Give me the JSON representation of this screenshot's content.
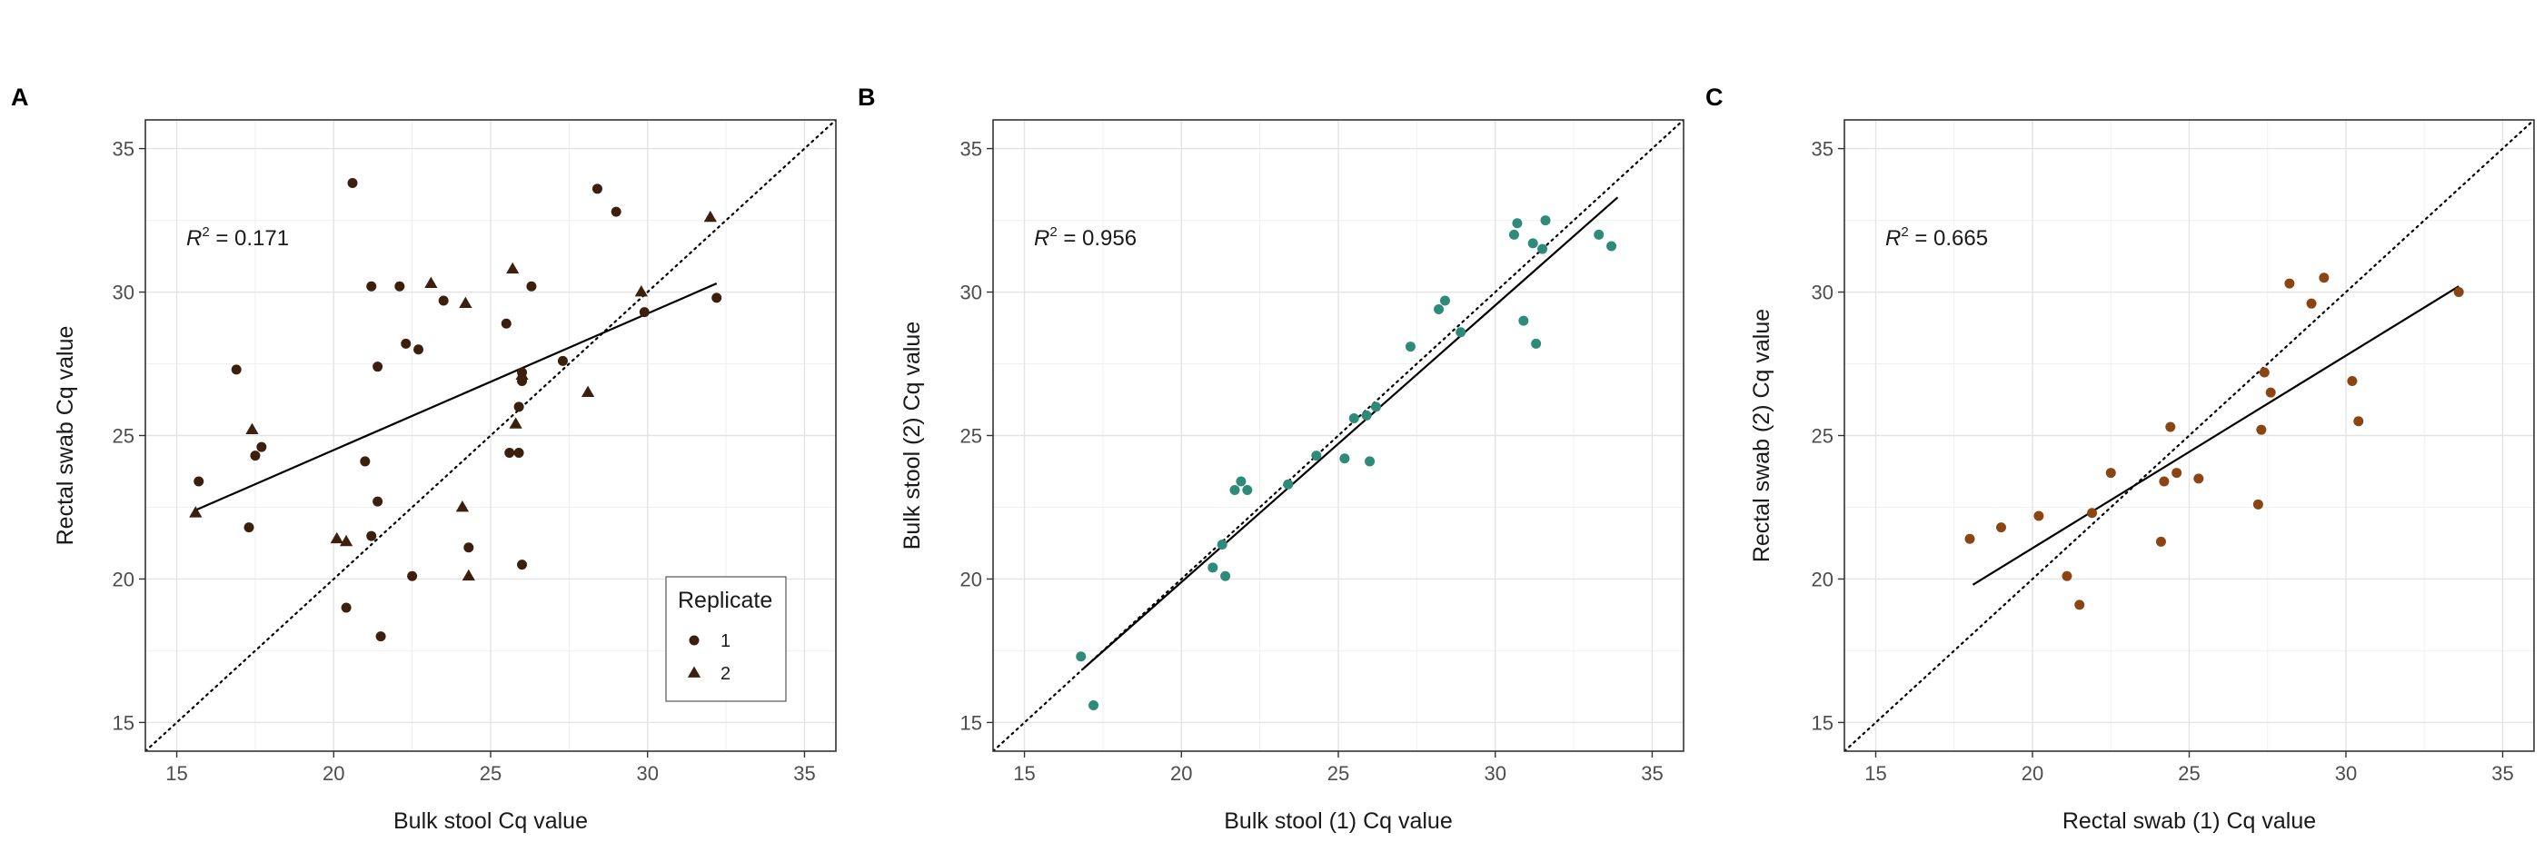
{
  "chart_data": [
    {
      "type": "scatter",
      "panel_label": "A",
      "xlabel": "Bulk stool Cq value",
      "ylabel": "Rectal swab Cq value",
      "xlim": [
        14,
        36
      ],
      "ylim": [
        14,
        36
      ],
      "xticks": [
        15,
        20,
        25,
        30,
        35
      ],
      "yticks": [
        15,
        20,
        25,
        30,
        35
      ],
      "grid": true,
      "r2_label": "= 0.171",
      "color": "#3d1f0d",
      "identity_line": true,
      "fit_line": {
        "x": [
          15.6,
          32.2
        ],
        "y": [
          22.4,
          30.3
        ]
      },
      "legend": {
        "title": "Replicate",
        "position": "bottom-right",
        "entries": [
          {
            "label": "1",
            "shape": "circle"
          },
          {
            "label": "2",
            "shape": "triangle"
          }
        ]
      },
      "series": [
        {
          "name": "1",
          "shape": "circle",
          "points": [
            [
              15.7,
              23.4
            ],
            [
              17.3,
              21.8
            ],
            [
              16.9,
              27.3
            ],
            [
              17.5,
              24.3
            ],
            [
              17.7,
              24.6
            ],
            [
              20.4,
              19.0
            ],
            [
              20.6,
              33.8
            ],
            [
              21.0,
              24.1
            ],
            [
              21.2,
              30.2
            ],
            [
              21.2,
              21.5
            ],
            [
              21.4,
              27.4
            ],
            [
              21.4,
              22.7
            ],
            [
              21.5,
              18.0
            ],
            [
              22.1,
              30.2
            ],
            [
              22.3,
              28.2
            ],
            [
              22.5,
              20.1
            ],
            [
              22.7,
              28.0
            ],
            [
              23.5,
              29.7
            ],
            [
              24.3,
              21.1
            ],
            [
              25.5,
              28.9
            ],
            [
              25.6,
              24.4
            ],
            [
              25.9,
              26.0
            ],
            [
              25.9,
              24.4
            ],
            [
              26.0,
              27.2
            ],
            [
              26.0,
              26.9
            ],
            [
              26.0,
              20.5
            ],
            [
              26.3,
              30.2
            ],
            [
              27.3,
              27.6
            ],
            [
              28.4,
              33.6
            ],
            [
              29.0,
              32.8
            ],
            [
              29.9,
              29.3
            ],
            [
              32.2,
              29.8
            ]
          ]
        },
        {
          "name": "2",
          "shape": "triangle",
          "points": [
            [
              15.6,
              22.3
            ],
            [
              17.4,
              25.2
            ],
            [
              20.1,
              21.4
            ],
            [
              20.4,
              21.3
            ],
            [
              23.1,
              30.3
            ],
            [
              24.1,
              22.5
            ],
            [
              24.2,
              29.6
            ],
            [
              24.3,
              20.1
            ],
            [
              25.7,
              30.8
            ],
            [
              25.8,
              25.4
            ],
            [
              26.0,
              27.1
            ],
            [
              28.1,
              26.5
            ],
            [
              29.8,
              30.0
            ],
            [
              32.0,
              32.6
            ]
          ]
        }
      ]
    },
    {
      "type": "scatter",
      "panel_label": "B",
      "xlabel": "Bulk stool (1) Cq value",
      "ylabel": "Bulk stool (2) Cq value",
      "xlim": [
        14,
        36
      ],
      "ylim": [
        14,
        36
      ],
      "xticks": [
        15,
        20,
        25,
        30,
        35
      ],
      "yticks": [
        15,
        20,
        25,
        30,
        35
      ],
      "grid": true,
      "r2_label": "= 0.956",
      "color": "#2e8b7a",
      "identity_line": true,
      "fit_line": {
        "x": [
          16.9,
          33.9
        ],
        "y": [
          16.9,
          33.3
        ]
      },
      "series": [
        {
          "name": "",
          "shape": "circle",
          "points": [
            [
              16.8,
              17.3
            ],
            [
              17.2,
              15.6
            ],
            [
              21.0,
              20.4
            ],
            [
              21.3,
              21.2
            ],
            [
              21.4,
              20.1
            ],
            [
              21.7,
              23.1
            ],
            [
              21.9,
              23.4
            ],
            [
              22.1,
              23.1
            ],
            [
              23.4,
              23.3
            ],
            [
              24.3,
              24.3
            ],
            [
              25.2,
              24.2
            ],
            [
              25.5,
              25.6
            ],
            [
              25.9,
              25.7
            ],
            [
              26.0,
              24.1
            ],
            [
              26.2,
              26.0
            ],
            [
              27.3,
              28.1
            ],
            [
              28.2,
              29.4
            ],
            [
              28.4,
              29.7
            ],
            [
              28.9,
              28.6
            ],
            [
              30.6,
              32.0
            ],
            [
              30.7,
              32.4
            ],
            [
              30.9,
              29.0
            ],
            [
              31.2,
              31.7
            ],
            [
              31.3,
              28.2
            ],
            [
              31.5,
              31.5
            ],
            [
              31.6,
              32.5
            ],
            [
              33.3,
              32.0
            ],
            [
              33.7,
              31.6
            ]
          ]
        }
      ]
    },
    {
      "type": "scatter",
      "panel_label": "C",
      "xlabel": "Rectal swab (1) Cq value",
      "ylabel": "Rectal swab (2) Cq value",
      "xlim": [
        14,
        36
      ],
      "ylim": [
        14,
        36
      ],
      "xticks": [
        15,
        20,
        25,
        30,
        35
      ],
      "yticks": [
        15,
        20,
        25,
        30,
        35
      ],
      "grid": true,
      "r2_label": "= 0.665",
      "color": "#8b4513",
      "identity_line": true,
      "fit_line": {
        "x": [
          18.1,
          33.6
        ],
        "y": [
          19.8,
          30.2
        ]
      },
      "series": [
        {
          "name": "",
          "shape": "circle",
          "points": [
            [
              18.0,
              21.4
            ],
            [
              19.0,
              21.8
            ],
            [
              20.2,
              22.2
            ],
            [
              21.1,
              20.1
            ],
            [
              21.5,
              19.1
            ],
            [
              21.9,
              22.3
            ],
            [
              22.5,
              23.7
            ],
            [
              24.1,
              21.3
            ],
            [
              24.2,
              23.4
            ],
            [
              24.4,
              25.3
            ],
            [
              24.6,
              23.7
            ],
            [
              25.3,
              23.5
            ],
            [
              27.2,
              22.6
            ],
            [
              27.3,
              25.2
            ],
            [
              27.4,
              27.2
            ],
            [
              27.6,
              26.5
            ],
            [
              28.2,
              30.3
            ],
            [
              28.9,
              29.6
            ],
            [
              29.3,
              30.5
            ],
            [
              30.2,
              26.9
            ],
            [
              30.4,
              25.5
            ],
            [
              33.6,
              30.0
            ]
          ]
        }
      ]
    }
  ]
}
